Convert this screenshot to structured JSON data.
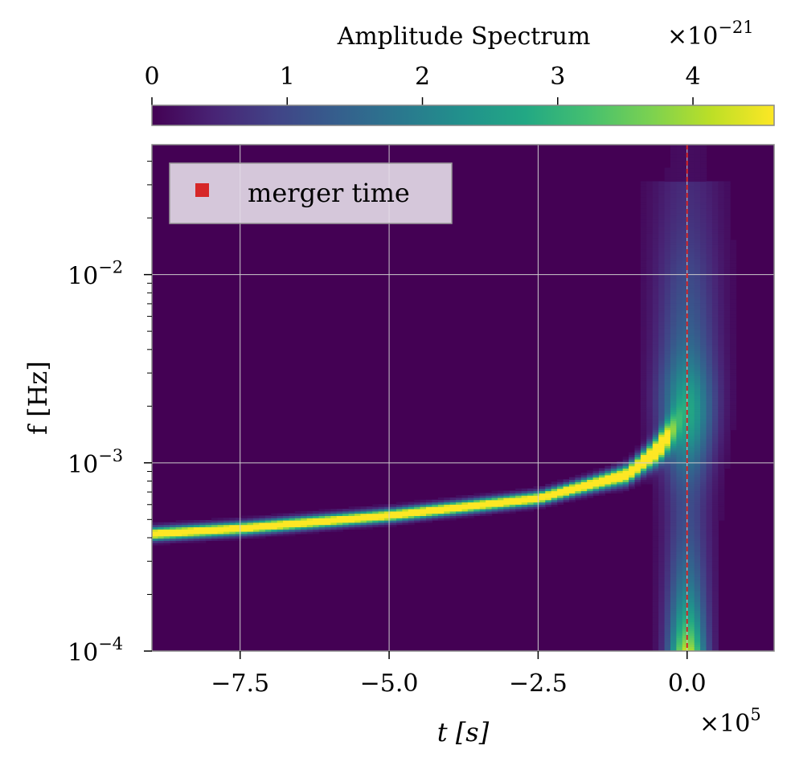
{
  "chart_data": {
    "type": "heatmap",
    "title": "",
    "xlabel": "t [s]",
    "ylabel": "f [Hz]",
    "x_offset_label": "×10",
    "x_offset_exp": "5",
    "x_scale": 100000,
    "xlim": [
      -8.98,
      1.46
    ],
    "ylim": [
      0.0001,
      0.049
    ],
    "yscale": "log",
    "xticks": [
      -7.5,
      -5.0,
      -2.5,
      0.0
    ],
    "xtick_labels": [
      "−7.5",
      "−5.0",
      "−2.5",
      "0.0"
    ],
    "yticks": [
      0.0001,
      0.001,
      0.01
    ],
    "ytick_bases": [
      "10",
      "10",
      "10"
    ],
    "ytick_exps": [
      "−4",
      "−3",
      "−2"
    ],
    "grid": true,
    "colormap": "viridis",
    "colorbar": {
      "label": "Amplitude Spectrum",
      "offset_label": "×10",
      "offset_exp": "−21",
      "range": [
        0,
        4.6
      ],
      "ticks": [
        0,
        1,
        2,
        3,
        4
      ],
      "tick_labels": [
        "0",
        "1",
        "2",
        "3",
        "4"
      ],
      "position": "top"
    },
    "chirp_track": {
      "t": [
        -9.0,
        -7.5,
        -5.0,
        -2.5,
        -1.0,
        -0.5,
        -0.3
      ],
      "f": [
        0.00042,
        0.00045,
        0.000527,
        0.00065,
        0.00087,
        0.00117,
        0.0014
      ]
    },
    "merger_burst": {
      "t_center": 0.0,
      "peak_amplitude_low_f": 3.8,
      "peak_amplitude_high_f": 1.8
    },
    "merger_time": 0.0,
    "merger_line_color": "#d62728",
    "legend": {
      "position": "top-left",
      "entries": [
        {
          "label": "merger time",
          "color": "#d62728"
        }
      ]
    }
  }
}
